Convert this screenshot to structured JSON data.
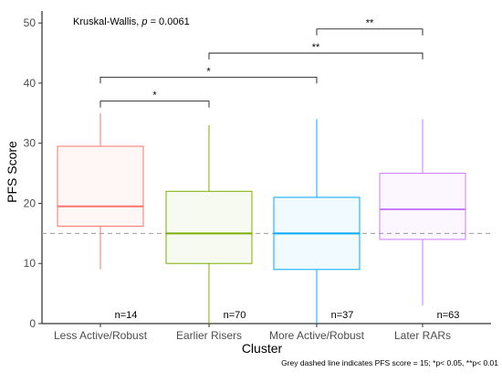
{
  "chart_data": {
    "type": "boxplot",
    "xlabel": "Cluster",
    "ylabel": "PFS Score",
    "ylim": [
      0,
      52
    ],
    "yticks": [
      0,
      10,
      20,
      30,
      40,
      50
    ],
    "grid": false,
    "reference_line": {
      "y": 15,
      "style": "dashed",
      "color": "#999999"
    },
    "test_label": "Kruskal-Wallis, ",
    "test_p_symbol": "p",
    "test_p_value": " = 0.0061",
    "footnote": "Grey dashed line indicates PFS score = 15; *p< 0.05, **p< 0.01",
    "boxes": [
      {
        "category": "Less Active/Robust",
        "color": "#F8766D",
        "min": 9,
        "q1": 16.2,
        "median": 19.5,
        "q3": 29.5,
        "max": 35,
        "n_label": "n=14"
      },
      {
        "category": "Earlier Risers",
        "color": "#7CAE00",
        "min": 0,
        "q1": 10,
        "median": 15,
        "q3": 22,
        "max": 33,
        "n_label": "n=70"
      },
      {
        "category": "More Active/Robust",
        "color": "#00A9FF",
        "min": 0,
        "q1": 9,
        "median": 15,
        "q3": 21,
        "max": 34,
        "n_label": "n=37"
      },
      {
        "category": "Later RARs",
        "color": "#C77CFF",
        "min": 3,
        "q1": 14,
        "median": 19,
        "q3": 25,
        "max": 34,
        "n_label": "n=63"
      }
    ],
    "comparisons": [
      {
        "from": 0,
        "to": 1,
        "y": 37,
        "label": "*"
      },
      {
        "from": 0,
        "to": 2,
        "y": 41,
        "label": "*"
      },
      {
        "from": 1,
        "to": 3,
        "y": 45,
        "label": "**"
      },
      {
        "from": 2,
        "to": 3,
        "y": 49,
        "label": "**"
      }
    ]
  }
}
